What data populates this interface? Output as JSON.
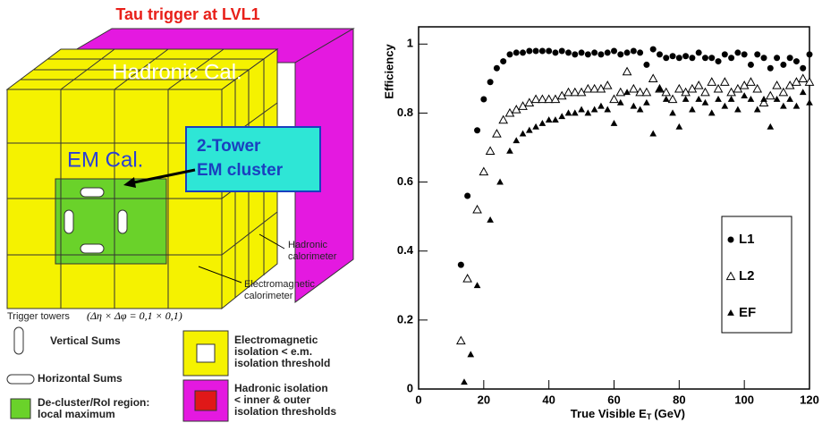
{
  "diagram": {
    "title": "Tau  trigger at LVL1",
    "hadronic_label": "Hadronic Cal.",
    "em_label": "EM Cal.",
    "cluster_label": [
      "2-Tower",
      "EM cluster"
    ],
    "hadronic_callout": [
      "Hadronic",
      "calorimeter"
    ],
    "em_callout": [
      "Electromagnetic",
      "calorimeter"
    ],
    "towers_label": "Trigger towers",
    "towers_formula": "(Δη × Δφ = 0,1 × 0,1)",
    "legend": {
      "vertical": "Vertical Sums",
      "horizontal": "Horizontal Sums",
      "decluster": [
        "De-cluster/RoI region:",
        "local maximum"
      ],
      "em_isolation": [
        "Electromagnetic",
        "isolation < e.m.",
        "isolation threshold"
      ],
      "had_isolation": [
        "Hadronic isolation",
        "< inner & outer",
        "isolation thresholds"
      ]
    }
  },
  "chart_data": {
    "type": "scatter",
    "ylabel": "Efficiency",
    "xlabel": "True Visible E",
    "xlabel_sub": "T",
    "xlabel_unit": "(GeV)",
    "xlim": [
      0,
      120
    ],
    "ylim": [
      0,
      1.05
    ],
    "xticks": [
      0,
      20,
      40,
      60,
      80,
      100,
      120
    ],
    "yticks": [
      0,
      0.2,
      0.4,
      0.6,
      0.8,
      1
    ],
    "series": [
      {
        "name": "L1",
        "marker": "circle",
        "color": "#000000",
        "x": [
          13,
          15,
          18,
          20,
          22,
          24,
          26,
          28,
          30,
          32,
          34,
          36,
          38,
          40,
          42,
          44,
          46,
          48,
          50,
          52,
          54,
          56,
          58,
          60,
          62,
          64,
          66,
          68,
          70,
          72,
          74,
          76,
          78,
          80,
          82,
          84,
          86,
          88,
          90,
          92,
          94,
          96,
          98,
          100,
          102,
          104,
          106,
          108,
          110,
          112,
          114,
          116,
          118,
          120
        ],
        "values": [
          0.36,
          0.56,
          0.75,
          0.84,
          0.89,
          0.93,
          0.95,
          0.97,
          0.975,
          0.975,
          0.98,
          0.98,
          0.98,
          0.98,
          0.975,
          0.98,
          0.975,
          0.97,
          0.975,
          0.97,
          0.975,
          0.97,
          0.975,
          0.98,
          0.97,
          0.975,
          0.98,
          0.975,
          0.94,
          0.985,
          0.97,
          0.96,
          0.965,
          0.96,
          0.965,
          0.96,
          0.975,
          0.96,
          0.96,
          0.95,
          0.97,
          0.96,
          0.975,
          0.97,
          0.94,
          0.97,
          0.96,
          0.93,
          0.96,
          0.94,
          0.96,
          0.95,
          0.93,
          0.97
        ]
      },
      {
        "name": "L2",
        "marker": "open-triangle",
        "color": "#000000",
        "x": [
          13,
          15,
          18,
          20,
          22,
          24,
          26,
          28,
          30,
          32,
          34,
          36,
          38,
          40,
          42,
          44,
          46,
          48,
          50,
          52,
          54,
          56,
          58,
          60,
          62,
          64,
          66,
          68,
          70,
          72,
          74,
          76,
          78,
          80,
          82,
          84,
          86,
          88,
          90,
          92,
          94,
          96,
          98,
          100,
          102,
          104,
          106,
          108,
          110,
          112,
          114,
          116,
          118,
          120
        ],
        "values": [
          0.14,
          0.32,
          0.52,
          0.63,
          0.69,
          0.74,
          0.78,
          0.8,
          0.81,
          0.82,
          0.83,
          0.84,
          0.84,
          0.84,
          0.84,
          0.85,
          0.86,
          0.86,
          0.86,
          0.87,
          0.87,
          0.87,
          0.88,
          0.84,
          0.86,
          0.92,
          0.87,
          0.86,
          0.86,
          0.9,
          0.87,
          0.86,
          0.84,
          0.87,
          0.86,
          0.87,
          0.88,
          0.86,
          0.89,
          0.87,
          0.89,
          0.86,
          0.87,
          0.88,
          0.89,
          0.87,
          0.83,
          0.85,
          0.88,
          0.86,
          0.88,
          0.89,
          0.9,
          0.89
        ]
      },
      {
        "name": "EF",
        "marker": "filled-triangle",
        "color": "#000000",
        "x": [
          14,
          16,
          18,
          22,
          25,
          28,
          30,
          32,
          34,
          36,
          38,
          40,
          42,
          44,
          46,
          48,
          50,
          52,
          54,
          56,
          58,
          60,
          62,
          64,
          66,
          68,
          70,
          72,
          74,
          76,
          78,
          80,
          82,
          84,
          86,
          88,
          90,
          92,
          94,
          96,
          98,
          100,
          102,
          104,
          106,
          108,
          110,
          112,
          114,
          116,
          118,
          120
        ],
        "values": [
          0.02,
          0.1,
          0.3,
          0.49,
          0.6,
          0.69,
          0.72,
          0.74,
          0.75,
          0.76,
          0.77,
          0.78,
          0.78,
          0.79,
          0.8,
          0.8,
          0.81,
          0.8,
          0.81,
          0.82,
          0.81,
          0.77,
          0.83,
          0.86,
          0.82,
          0.81,
          0.83,
          0.74,
          0.87,
          0.84,
          0.8,
          0.76,
          0.84,
          0.81,
          0.84,
          0.83,
          0.8,
          0.84,
          0.82,
          0.84,
          0.81,
          0.85,
          0.84,
          0.81,
          0.84,
          0.76,
          0.84,
          0.82,
          0.84,
          0.82,
          0.86,
          0.83
        ]
      }
    ]
  }
}
